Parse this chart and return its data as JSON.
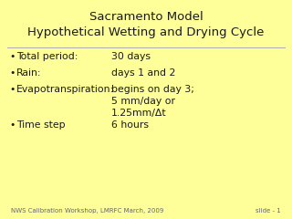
{
  "title_line1": "Sacramento Model",
  "title_line2": "Hypothetical Wetting and Drying Cycle",
  "background_color": "#FFFF99",
  "title_color": "#1a1a1a",
  "text_color": "#1a1a1a",
  "footer_left": "NWS Calibration Workshop, LMRFC March, 2009",
  "footer_right": "slide - 1",
  "bullet_items": [
    {
      "label": "Total period:",
      "value": "30 days"
    },
    {
      "label": "Rain:",
      "value": "days 1 and 2"
    },
    {
      "label": "Evapotranspiration:",
      "value": "begins on day 3;\n5 mm/day or\n1.25mm/Δt"
    },
    {
      "label": "Time step",
      "value": "6 hours"
    }
  ],
  "title_fontsize": 9.5,
  "body_fontsize": 7.8,
  "footer_fontsize": 5.0,
  "bullet_char": "•",
  "line_color": "#aaaaaa",
  "footer_color": "#666666"
}
